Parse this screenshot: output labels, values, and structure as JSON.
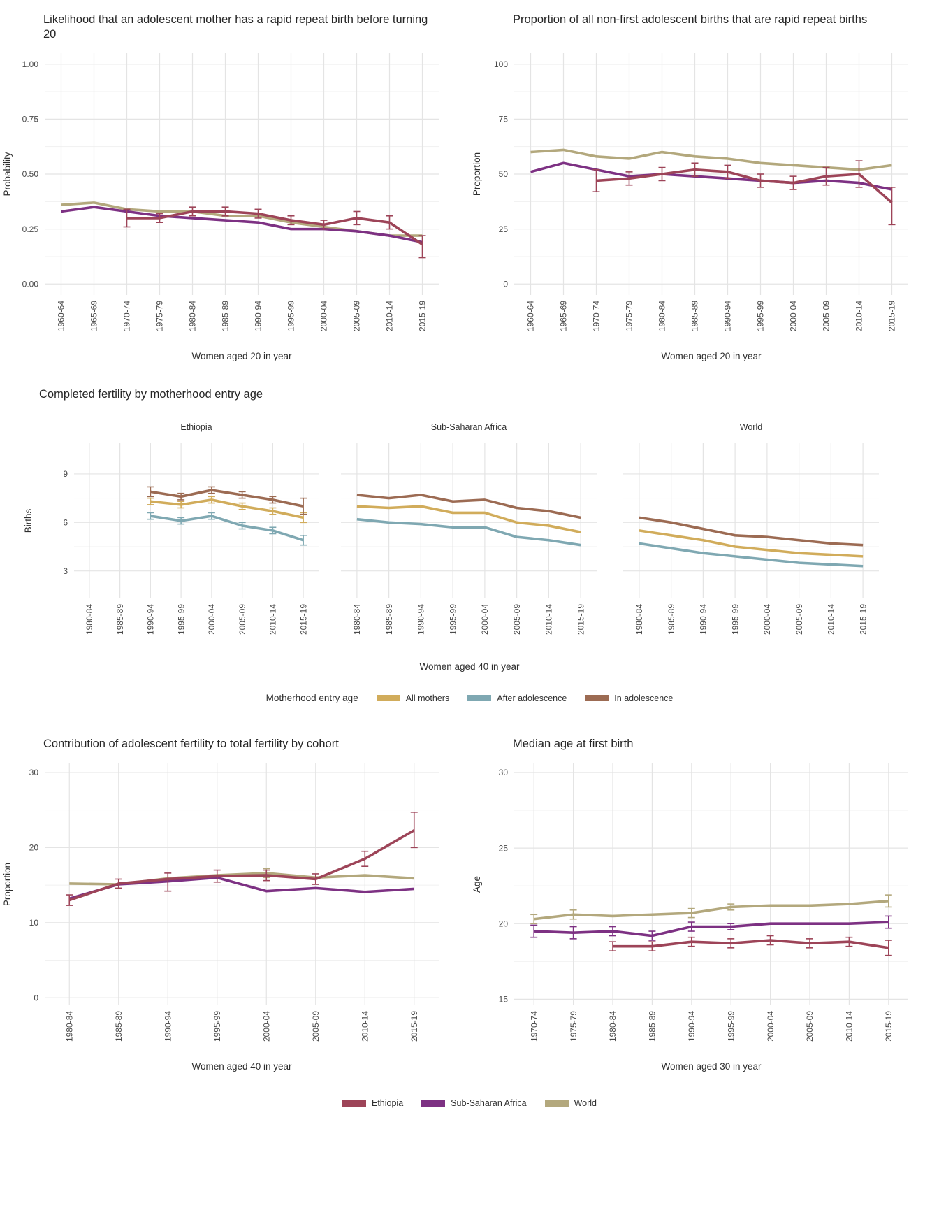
{
  "palette": {
    "ethiopia": "#9d4458",
    "sub_saharan_africa": "#7d3183",
    "world": "#b3a87d",
    "all_mothers": "#d1ac5b",
    "after_adolescence": "#7fa8b2",
    "in_adolescence": "#9c6b53",
    "grid_major": "#e4e4e4",
    "grid_minor": "#f1f1f1",
    "tick_text": "#4a4a4a",
    "title_text": "#262626"
  },
  "fertility": {
    "title": "Completed fertility by motherhood entry age",
    "xlabel": "Women aged 40 in year"
  },
  "legend_fertility": {
    "title": "Motherhood entry age",
    "items": [
      {
        "label": "All mothers",
        "color": "#d1ac5b"
      },
      {
        "label": "After adolescence",
        "color": "#7fa8b2"
      },
      {
        "label": "In adolescence",
        "color": "#9c6b53"
      }
    ]
  },
  "legend_countries": {
    "items": [
      {
        "label": "Ethiopia",
        "color": "#9d4458"
      },
      {
        "label": "Sub-Saharan Africa",
        "color": "#7d3183"
      },
      {
        "label": "World",
        "color": "#b3a87d"
      }
    ]
  },
  "chart_data": [
    {
      "id": "rapid-repeat-probability",
      "type": "line",
      "title": "Likelihood that an adolescent mother has a rapid repeat birth before turning 20",
      "xlabel": "Women aged 20 in year",
      "ylabel": "Probability",
      "categories": [
        "1960-64",
        "1965-69",
        "1970-74",
        "1975-79",
        "1980-84",
        "1985-89",
        "1990-94",
        "1995-99",
        "2000-04",
        "2005-09",
        "2010-14",
        "2015-19"
      ],
      "ylim": [
        -0.05,
        1.05
      ],
      "yticks": [
        0,
        0.25,
        0.5,
        0.75,
        1
      ],
      "ytick_labels": [
        "0.00",
        "0.25",
        "0.50",
        "0.75",
        "1.00"
      ],
      "grid": true,
      "legend_position": "none",
      "series": [
        {
          "name": "World",
          "color": "#b3a87d",
          "values": [
            0.36,
            0.37,
            0.34,
            0.33,
            0.33,
            0.31,
            0.31,
            0.28,
            0.26,
            0.24,
            0.22,
            0.22
          ]
        },
        {
          "name": "Sub-Saharan Africa",
          "color": "#7d3183",
          "values": [
            0.33,
            0.35,
            0.33,
            0.31,
            0.3,
            0.29,
            0.28,
            0.25,
            0.25,
            0.24,
            0.22,
            0.19
          ]
        },
        {
          "name": "Ethiopia",
          "color": "#9d4458",
          "values": [
            null,
            null,
            0.3,
            0.3,
            0.33,
            0.33,
            0.32,
            0.29,
            0.27,
            0.3,
            0.28,
            0.18
          ],
          "errors": [
            null,
            null,
            [
              0.26,
              0.34
            ],
            [
              0.28,
              0.32
            ],
            [
              0.31,
              0.35
            ],
            [
              0.31,
              0.35
            ],
            [
              0.3,
              0.34
            ],
            [
              0.27,
              0.31
            ],
            [
              0.25,
              0.29
            ],
            [
              0.27,
              0.33
            ],
            [
              0.25,
              0.31
            ],
            [
              0.12,
              0.22
            ]
          ]
        }
      ]
    },
    {
      "id": "rapid-repeat-proportion",
      "type": "line",
      "title": "Proportion of all non-first adolescent births that are rapid repeat births",
      "xlabel": "Women aged 20 in year",
      "ylabel": "Proportion",
      "categories": [
        "1960-64",
        "1965-69",
        "1970-74",
        "1975-79",
        "1980-84",
        "1985-89",
        "1990-94",
        "1995-99",
        "2000-04",
        "2005-09",
        "2010-14",
        "2015-19"
      ],
      "ylim": [
        -5,
        105
      ],
      "yticks": [
        0,
        25,
        50,
        75,
        100
      ],
      "ytick_labels": [
        "0",
        "25",
        "50",
        "75",
        "100"
      ],
      "grid": true,
      "legend_position": "none",
      "series": [
        {
          "name": "World",
          "color": "#b3a87d",
          "values": [
            60,
            61,
            58,
            57,
            60,
            58,
            57,
            55,
            54,
            53,
            52,
            54
          ]
        },
        {
          "name": "Sub-Saharan Africa",
          "color": "#7d3183",
          "values": [
            51,
            55,
            52,
            49,
            50,
            49,
            48,
            47,
            46,
            47,
            46,
            43
          ]
        },
        {
          "name": "Ethiopia",
          "color": "#9d4458",
          "values": [
            null,
            null,
            47,
            48,
            50,
            52,
            51,
            47,
            46,
            49,
            50,
            37
          ],
          "errors": [
            null,
            null,
            [
              42,
              52
            ],
            [
              45,
              51
            ],
            [
              47,
              53
            ],
            [
              49,
              55
            ],
            [
              48,
              54
            ],
            [
              44,
              50
            ],
            [
              43,
              49
            ],
            [
              45,
              53
            ],
            [
              44,
              56
            ],
            [
              27,
              44
            ]
          ]
        }
      ]
    },
    {
      "id": "fertility-ethiopia",
      "type": "line",
      "facet_label": "Ethiopia",
      "xlabel": "",
      "ylabel": "Births",
      "categories": [
        "1980-84",
        "1985-89",
        "1990-94",
        "1995-99",
        "2000-04",
        "2005-09",
        "2010-14",
        "2015-19"
      ],
      "ylim": [
        1.3,
        10.9
      ],
      "yticks": [
        3,
        6,
        9
      ],
      "ytick_labels": [
        "3",
        "6",
        "9"
      ],
      "grid": true,
      "series": [
        {
          "name": "All mothers",
          "color": "#d1ac5b",
          "values": [
            null,
            null,
            7.3,
            7.1,
            7.4,
            7.0,
            6.7,
            6.3
          ],
          "errors": [
            null,
            null,
            [
              7.1,
              7.5
            ],
            [
              6.9,
              7.3
            ],
            [
              7.2,
              7.6
            ],
            [
              6.8,
              7.2
            ],
            [
              6.5,
              6.9
            ],
            [
              6.0,
              6.6
            ]
          ]
        },
        {
          "name": "After adolescence",
          "color": "#7fa8b2",
          "values": [
            null,
            null,
            6.4,
            6.1,
            6.4,
            5.8,
            5.5,
            4.9
          ],
          "errors": [
            null,
            null,
            [
              6.2,
              6.6
            ],
            [
              5.9,
              6.3
            ],
            [
              6.2,
              6.6
            ],
            [
              5.6,
              6.0
            ],
            [
              5.3,
              5.7
            ],
            [
              4.6,
              5.2
            ]
          ]
        },
        {
          "name": "In adolescence",
          "color": "#9c6b53",
          "values": [
            null,
            null,
            7.9,
            7.6,
            8.0,
            7.7,
            7.4,
            7.0
          ],
          "errors": [
            null,
            null,
            [
              7.6,
              8.2
            ],
            [
              7.4,
              7.8
            ],
            [
              7.8,
              8.2
            ],
            [
              7.5,
              7.9
            ],
            [
              7.2,
              7.6
            ],
            [
              6.5,
              7.5
            ]
          ]
        }
      ]
    },
    {
      "id": "fertility-sub-saharan-africa",
      "type": "line",
      "facet_label": "Sub-Saharan Africa",
      "xlabel": "",
      "ylabel": "",
      "show_y_axis": false,
      "categories": [
        "1980-84",
        "1985-89",
        "1990-94",
        "1995-99",
        "2000-04",
        "2005-09",
        "2010-14",
        "2015-19"
      ],
      "ylim": [
        1.3,
        10.9
      ],
      "yticks": [
        3,
        6,
        9
      ],
      "ytick_labels": [
        "3",
        "6",
        "9"
      ],
      "grid": true,
      "series": [
        {
          "name": "All mothers",
          "color": "#d1ac5b",
          "values": [
            7.0,
            6.9,
            7.0,
            6.6,
            6.6,
            6.0,
            5.8,
            5.4
          ]
        },
        {
          "name": "After adolescence",
          "color": "#7fa8b2",
          "values": [
            6.2,
            6.0,
            5.9,
            5.7,
            5.7,
            5.1,
            4.9,
            4.6
          ]
        },
        {
          "name": "In adolescence",
          "color": "#9c6b53",
          "values": [
            7.7,
            7.5,
            7.7,
            7.3,
            7.4,
            6.9,
            6.7,
            6.3
          ]
        }
      ]
    },
    {
      "id": "fertility-world",
      "type": "line",
      "facet_label": "World",
      "xlabel": "",
      "ylabel": "",
      "show_y_axis": false,
      "categories": [
        "1980-84",
        "1985-89",
        "1990-94",
        "1995-99",
        "2000-04",
        "2005-09",
        "2010-14",
        "2015-19"
      ],
      "ylim": [
        1.3,
        10.9
      ],
      "yticks": [
        3,
        6,
        9
      ],
      "ytick_labels": [
        "3",
        "6",
        "9"
      ],
      "grid": true,
      "series": [
        {
          "name": "All mothers",
          "color": "#d1ac5b",
          "values": [
            5.5,
            5.2,
            4.9,
            4.5,
            4.3,
            4.1,
            4.0,
            3.9
          ]
        },
        {
          "name": "After adolescence",
          "color": "#7fa8b2",
          "values": [
            4.7,
            4.4,
            4.1,
            3.9,
            3.7,
            3.5,
            3.4,
            3.3
          ]
        },
        {
          "name": "In adolescence",
          "color": "#9c6b53",
          "values": [
            6.3,
            6.0,
            5.6,
            5.2,
            5.1,
            4.9,
            4.7,
            4.6
          ]
        }
      ]
    },
    {
      "id": "adolescent-contribution",
      "type": "line",
      "title": "Contribution of adolescent fertility to total fertility by cohort",
      "xlabel": "Women aged 40 in year",
      "ylabel": "Proportion",
      "categories": [
        "1980-84",
        "1985-89",
        "1990-94",
        "1995-99",
        "2000-04",
        "2005-09",
        "2010-14",
        "2015-19"
      ],
      "ylim": [
        -1,
        31.2
      ],
      "yticks": [
        0,
        10,
        20,
        30
      ],
      "ytick_labels": [
        "0",
        "10",
        "20",
        "30"
      ],
      "grid": true,
      "series": [
        {
          "name": "World",
          "color": "#b3a87d",
          "values": [
            15.2,
            15.1,
            15.9,
            16.3,
            16.6,
            16.0,
            16.3,
            15.9
          ],
          "errors": [
            null,
            null,
            null,
            null,
            [
              16.0,
              17.2
            ],
            null,
            null,
            null
          ]
        },
        {
          "name": "Sub-Saharan Africa",
          "color": "#7d3183",
          "values": [
            13.2,
            15.1,
            15.5,
            16.0,
            14.2,
            14.6,
            14.1,
            14.5
          ]
        },
        {
          "name": "Ethiopia",
          "color": "#9d4458",
          "values": [
            13.0,
            15.2,
            15.8,
            16.2,
            16.3,
            15.8,
            18.5,
            22.3
          ],
          "errors": [
            [
              12.3,
              13.7
            ],
            [
              14.6,
              15.8
            ],
            [
              14.2,
              16.6
            ],
            [
              15.4,
              17.0
            ],
            [
              15.6,
              17.0
            ],
            [
              15.1,
              16.5
            ],
            [
              17.5,
              19.5
            ],
            [
              20.0,
              24.7
            ]
          ]
        }
      ]
    },
    {
      "id": "median-age-first-birth",
      "type": "line",
      "title": "Median age at first birth",
      "xlabel": "Women aged 30 in year",
      "ylabel": "Age",
      "categories": [
        "1970-74",
        "1975-79",
        "1980-84",
        "1985-89",
        "1990-94",
        "1995-99",
        "2000-04",
        "2005-09",
        "2010-14",
        "2015-19"
      ],
      "ylim": [
        14.6,
        30.6
      ],
      "yticks": [
        15,
        20,
        25,
        30
      ],
      "ytick_labels": [
        "15",
        "20",
        "25",
        "30"
      ],
      "grid": true,
      "series": [
        {
          "name": "World",
          "color": "#b3a87d",
          "values": [
            20.3,
            20.6,
            20.5,
            20.6,
            20.7,
            21.1,
            21.2,
            21.2,
            21.3,
            21.5
          ],
          "errors": [
            [
              20.0,
              20.6
            ],
            [
              20.3,
              20.9
            ],
            null,
            null,
            [
              20.4,
              21.0
            ],
            [
              20.9,
              21.3
            ],
            null,
            null,
            null,
            [
              21.1,
              21.9
            ]
          ]
        },
        {
          "name": "Sub-Saharan Africa",
          "color": "#7d3183",
          "values": [
            19.5,
            19.4,
            19.5,
            19.2,
            19.8,
            19.8,
            20.0,
            20.0,
            20.0,
            20.1
          ],
          "errors": [
            [
              19.1,
              19.9
            ],
            [
              19.0,
              19.8
            ],
            [
              19.2,
              19.8
            ],
            [
              18.9,
              19.5
            ],
            [
              19.5,
              20.1
            ],
            [
              19.6,
              20.0
            ],
            null,
            null,
            null,
            [
              19.7,
              20.5
            ]
          ]
        },
        {
          "name": "Ethiopia",
          "color": "#9d4458",
          "values": [
            null,
            null,
            18.5,
            18.5,
            18.8,
            18.7,
            18.9,
            18.7,
            18.8,
            18.4
          ],
          "errors": [
            null,
            null,
            [
              18.2,
              18.8
            ],
            [
              18.2,
              18.8
            ],
            [
              18.5,
              19.1
            ],
            [
              18.4,
              19.0
            ],
            [
              18.6,
              19.2
            ],
            [
              18.4,
              19.0
            ],
            [
              18.5,
              19.1
            ],
            [
              17.9,
              18.9
            ]
          ]
        }
      ]
    }
  ]
}
